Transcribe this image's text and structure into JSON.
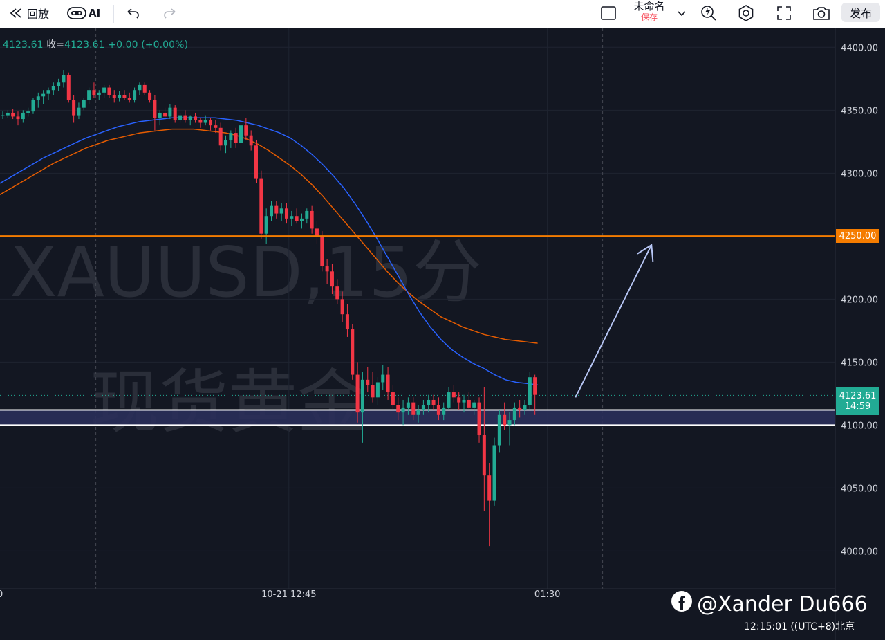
{
  "toolbar": {
    "replay_label": "回放",
    "ai_label": "AI",
    "layout_title": "未命名",
    "layout_save": "保存",
    "publish_label": "发布"
  },
  "quote": {
    "first_value": "4123.61",
    "close_label": "收=",
    "close_value": "4123.61",
    "change": "+0.00 (+0.00%)"
  },
  "watermark": {
    "symbol_line": "XAUUSD,15分",
    "name_line": "现货黄金"
  },
  "price_tags": {
    "current": "4123.61",
    "countdown": "14:59",
    "level": "4250.00"
  },
  "colors": {
    "up": "#22ab94",
    "down": "#f23645",
    "ma_fast": "#2962ff",
    "ma_slow": "#e65c00",
    "resistance": "#f57c00",
    "zone": "#2a2f5a",
    "arrow": "#b7c6f5"
  },
  "credit": {
    "handle": "@Xander Du666"
  },
  "clock": {
    "time": "12:15:01",
    "timezone": "((UTC+8)北京"
  },
  "chart_data": {
    "type": "candlestick",
    "symbol": "XAUUSD",
    "interval": "15分",
    "ylim": [
      3970,
      4415
    ],
    "y_ticks": [
      4000,
      4050,
      4100,
      4150,
      4200,
      4250,
      4300,
      4350,
      4400
    ],
    "y_tick_labels": [
      "4000.00",
      "4050.00",
      "4100.00",
      "4150.00",
      "4200.00",
      "4250.00",
      "4300.00",
      "4350.00",
      "4400.00"
    ],
    "x_labels": [
      {
        "text": "0",
        "index": -1
      },
      {
        "text": "10-21 12:45",
        "index": 51
      },
      {
        "text": "01:30",
        "index": 102
      }
    ],
    "x_dashed_index": [
      20,
      120
    ],
    "horizontal_levels": [
      {
        "price": 4250.0,
        "label": "4250.00"
      }
    ],
    "support_zone": [
      4100.0,
      4112.0
    ],
    "current_price": 4123.61,
    "ohlc": [
      [
        4346,
        4349,
        4343,
        4346
      ],
      [
        4346,
        4350,
        4344,
        4348
      ],
      [
        4348,
        4351,
        4343,
        4345
      ],
      [
        4345,
        4349,
        4338,
        4343
      ],
      [
        4343,
        4350,
        4340,
        4348
      ],
      [
        4348,
        4352,
        4345,
        4349
      ],
      [
        4349,
        4360,
        4347,
        4358
      ],
      [
        4358,
        4364,
        4352,
        4361
      ],
      [
        4361,
        4366,
        4355,
        4363
      ],
      [
        4363,
        4368,
        4358,
        4366
      ],
      [
        4366,
        4372,
        4362,
        4369
      ],
      [
        4369,
        4375,
        4365,
        4372
      ],
      [
        4372,
        4382,
        4368,
        4378
      ],
      [
        4378,
        4380,
        4356,
        4358
      ],
      [
        4358,
        4362,
        4340,
        4346
      ],
      [
        4346,
        4356,
        4343,
        4352
      ],
      [
        4352,
        4360,
        4350,
        4358
      ],
      [
        4358,
        4368,
        4355,
        4366
      ],
      [
        4366,
        4372,
        4360,
        4362
      ],
      [
        4362,
        4366,
        4358,
        4364
      ],
      [
        4364,
        4370,
        4360,
        4368
      ],
      [
        4368,
        4370,
        4360,
        4362
      ],
      [
        4362,
        4366,
        4356,
        4360
      ],
      [
        4360,
        4365,
        4357,
        4362
      ],
      [
        4362,
        4366,
        4358,
        4360
      ],
      [
        4360,
        4364,
        4356,
        4358
      ],
      [
        4358,
        4368,
        4356,
        4366
      ],
      [
        4366,
        4372,
        4362,
        4370
      ],
      [
        4370,
        4372,
        4362,
        4364
      ],
      [
        4364,
        4366,
        4356,
        4358
      ],
      [
        4358,
        4362,
        4334,
        4344
      ],
      [
        4344,
        4350,
        4338,
        4348
      ],
      [
        4348,
        4352,
        4342,
        4345
      ],
      [
        4345,
        4355,
        4343,
        4352
      ],
      [
        4352,
        4354,
        4340,
        4342
      ],
      [
        4342,
        4348,
        4340,
        4346
      ],
      [
        4346,
        4350,
        4340,
        4342
      ],
      [
        4342,
        4346,
        4338,
        4345
      ],
      [
        4345,
        4348,
        4340,
        4342
      ],
      [
        4342,
        4344,
        4336,
        4340
      ],
      [
        4340,
        4346,
        4338,
        4342
      ],
      [
        4342,
        4344,
        4334,
        4338
      ],
      [
        4338,
        4342,
        4332,
        4336
      ],
      [
        4336,
        4340,
        4318,
        4322
      ],
      [
        4322,
        4330,
        4316,
        4326
      ],
      [
        4326,
        4334,
        4320,
        4332
      ],
      [
        4332,
        4336,
        4320,
        4324
      ],
      [
        4324,
        4342,
        4322,
        4338
      ],
      [
        4338,
        4344,
        4326,
        4330
      ],
      [
        4330,
        4334,
        4318,
        4322
      ],
      [
        4322,
        4326,
        4292,
        4296
      ],
      [
        4296,
        4302,
        4248,
        4252
      ],
      [
        4252,
        4272,
        4244,
        4266
      ],
      [
        4266,
        4278,
        4262,
        4274
      ],
      [
        4274,
        4278,
        4264,
        4268
      ],
      [
        4268,
        4276,
        4262,
        4272
      ],
      [
        4272,
        4276,
        4260,
        4264
      ],
      [
        4264,
        4270,
        4258,
        4266
      ],
      [
        4266,
        4272,
        4260,
        4262
      ],
      [
        4262,
        4268,
        4256,
        4264
      ],
      [
        4264,
        4272,
        4260,
        4270
      ],
      [
        4270,
        4274,
        4252,
        4256
      ],
      [
        4256,
        4262,
        4244,
        4250
      ],
      [
        4250,
        4254,
        4222,
        4226
      ],
      [
        4226,
        4232,
        4212,
        4222
      ],
      [
        4222,
        4228,
        4204,
        4210
      ],
      [
        4210,
        4216,
        4196,
        4200
      ],
      [
        4200,
        4206,
        4182,
        4188
      ],
      [
        4188,
        4196,
        4170,
        4176
      ],
      [
        4176,
        4180,
        4136,
        4140
      ],
      [
        4140,
        4150,
        4102,
        4110
      ],
      [
        4110,
        4142,
        4086,
        4136
      ],
      [
        4136,
        4146,
        4126,
        4132
      ],
      [
        4132,
        4142,
        4118,
        4122
      ],
      [
        4122,
        4138,
        4116,
        4134
      ],
      [
        4134,
        4148,
        4128,
        4140
      ],
      [
        4140,
        4146,
        4120,
        4126
      ],
      [
        4126,
        4132,
        4112,
        4116
      ],
      [
        4116,
        4122,
        4104,
        4110
      ],
      [
        4110,
        4120,
        4100,
        4114
      ],
      [
        4114,
        4122,
        4108,
        4118
      ],
      [
        4118,
        4122,
        4104,
        4108
      ],
      [
        4108,
        4116,
        4102,
        4112
      ],
      [
        4112,
        4120,
        4108,
        4116
      ],
      [
        4116,
        4124,
        4110,
        4120
      ],
      [
        4120,
        4124,
        4112,
        4116
      ],
      [
        4116,
        4122,
        4104,
        4108
      ],
      [
        4108,
        4118,
        4104,
        4114
      ],
      [
        4114,
        4130,
        4112,
        4126
      ],
      [
        4126,
        4132,
        4118,
        4122
      ],
      [
        4122,
        4126,
        4112,
        4118
      ],
      [
        4118,
        4124,
        4110,
        4120
      ],
      [
        4120,
        4126,
        4112,
        4114
      ],
      [
        4114,
        4120,
        4108,
        4118
      ],
      [
        4118,
        4122,
        4086,
        4092
      ],
      [
        4092,
        4130,
        4032,
        4060
      ],
      [
        4060,
        4070,
        4004,
        4040
      ],
      [
        4040,
        4090,
        4036,
        4084
      ],
      [
        4084,
        4112,
        4078,
        4108
      ],
      [
        4108,
        4118,
        4096,
        4100
      ],
      [
        4100,
        4110,
        4084,
        4104
      ],
      [
        4104,
        4118,
        4100,
        4114
      ],
      [
        4114,
        4120,
        4106,
        4112
      ],
      [
        4112,
        4120,
        4108,
        4116
      ],
      [
        4116,
        4142,
        4112,
        4138
      ],
      [
        4138,
        4140,
        4108,
        4124
      ]
    ],
    "series": [
      {
        "name": "",
        "type": "ma",
        "color": "#2962ff"
      },
      {
        "name": "",
        "type": "ma",
        "color": "#e65c00"
      }
    ],
    "ma_fast": [
      4292,
      4297,
      4302,
      4307,
      4312,
      4316,
      4320,
      4324,
      4328,
      4331,
      4334,
      4337,
      4339,
      4341,
      4342,
      4343,
      4344,
      4344,
      4344,
      4344,
      4344,
      4343,
      4342,
      4340,
      4338,
      4335,
      4332,
      4328,
      4322,
      4315,
      4307,
      4298,
      4288,
      4276,
      4263,
      4249,
      4234,
      4219,
      4204,
      4190,
      4178,
      4168,
      4160,
      4154,
      4149,
      4145,
      4140,
      4136,
      4134,
      4133,
      4132
    ],
    "ma_slow": [
      4283,
      4288,
      4293,
      4298,
      4303,
      4308,
      4312,
      4316,
      4320,
      4323,
      4326,
      4328,
      4330,
      4332,
      4333,
      4334,
      4335,
      4335,
      4335,
      4334,
      4333,
      4332,
      4330,
      4327,
      4323,
      4318,
      4312,
      4306,
      4299,
      4291,
      4282,
      4272,
      4262,
      4252,
      4242,
      4232,
      4222,
      4213,
      4205,
      4198,
      4192,
      4186,
      4182,
      4178,
      4175,
      4172,
      4170,
      4168,
      4167,
      4166,
      4165
    ],
    "projection_arrow": {
      "from_index": 113,
      "from_price": 4122,
      "to_index": 128,
      "to_price": 4243
    },
    "grid": true
  }
}
